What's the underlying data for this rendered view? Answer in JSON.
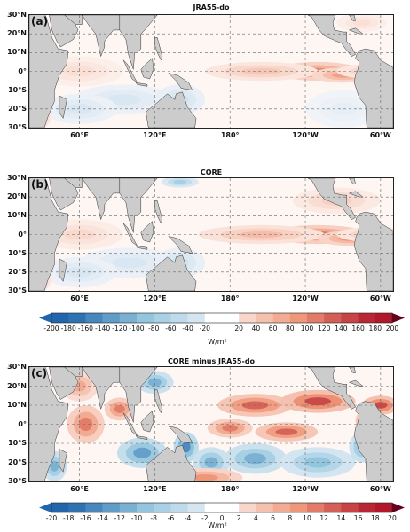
{
  "panels": [
    {
      "label": "(a)",
      "title": "JRA55-do"
    },
    {
      "label": "(b)",
      "title": "CORE"
    },
    {
      "label": "(c)",
      "title": "CORE minus JRA55-do"
    }
  ],
  "lat_ticks": [
    "30°N",
    "20°N",
    "10°N",
    "0°",
    "10°S",
    "20°S",
    "30°S"
  ],
  "lon_ticks": [
    "60°E",
    "120°E",
    "180°",
    "120°W",
    "60°W"
  ],
  "colorbar_1": {
    "ticks": [
      "-200",
      "-180",
      "-160",
      "-140",
      "-120",
      "-100",
      "-80",
      "-60",
      "-40",
      "-20",
      "20",
      "40",
      "60",
      "80",
      "100",
      "120",
      "140",
      "160",
      "180",
      "200"
    ],
    "unit": "W/m²"
  },
  "colorbar_2": {
    "ticks": [
      "-20",
      "-18",
      "-16",
      "-14",
      "-12",
      "-10",
      "-8",
      "-6",
      "-4",
      "-2",
      "0",
      "2",
      "4",
      "6",
      "8",
      "10",
      "12",
      "14",
      "16",
      "18",
      "20"
    ],
    "unit": "W/m²"
  },
  "colors": {
    "land": "#cccccc",
    "ocean_background": "#fdf6f3",
    "positive_max": "#67001f",
    "negative_max": "#053061"
  }
}
